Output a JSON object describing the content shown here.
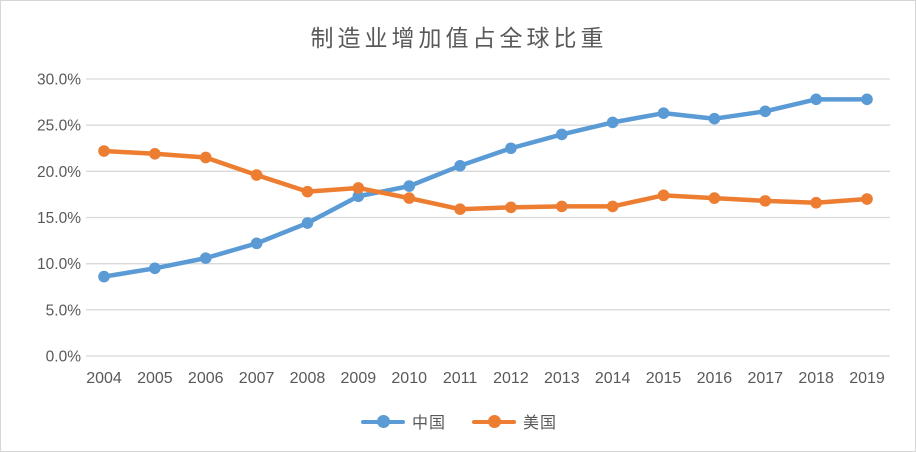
{
  "chart_data": {
    "type": "line",
    "title": "制造业增加值占全球比重",
    "categories": [
      "2004",
      "2005",
      "2006",
      "2007",
      "2008",
      "2009",
      "2010",
      "2011",
      "2012",
      "2013",
      "2014",
      "2015",
      "2016",
      "2017",
      "2018",
      "2019"
    ],
    "series": [
      {
        "name": "中国",
        "color": "#5B9BD5",
        "values": [
          8.6,
          9.5,
          10.6,
          12.2,
          14.4,
          17.3,
          18.4,
          20.6,
          22.5,
          24.0,
          25.3,
          26.3,
          25.7,
          26.5,
          27.8,
          27.8
        ]
      },
      {
        "name": "美国",
        "color": "#ED7D31",
        "values": [
          22.2,
          21.9,
          21.5,
          19.6,
          17.8,
          18.2,
          17.1,
          15.9,
          16.1,
          16.2,
          16.2,
          17.4,
          17.1,
          16.8,
          16.6,
          17.0
        ]
      }
    ],
    "xlabel": "",
    "ylabel": "",
    "ylim": [
      0,
      30
    ],
    "ytick_step": 5,
    "ytick_labels": [
      "0.0%",
      "5.0%",
      "10.0%",
      "15.0%",
      "20.0%",
      "25.0%",
      "30.0%"
    ],
    "grid": true,
    "legend_position": "bottom"
  },
  "colors": {
    "grid": "#d9d9d9",
    "axis_text": "#595959",
    "title_text": "#595959",
    "background": "#ffffff",
    "frame_border": "#d6d6d6"
  }
}
